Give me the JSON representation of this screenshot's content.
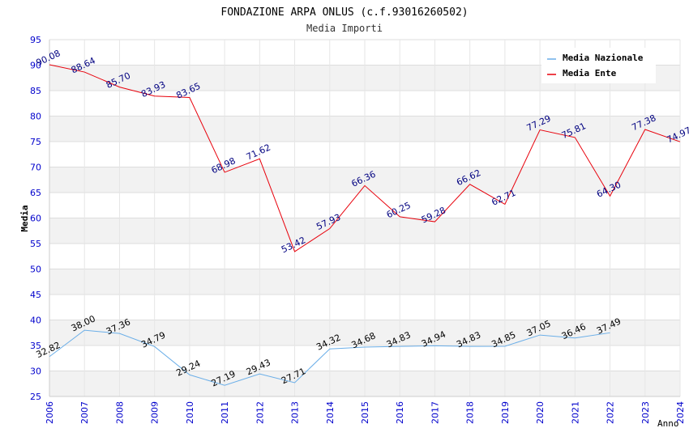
{
  "chart_data": {
    "type": "line",
    "title": "FONDAZIONE ARPA ONLUS (c.f.93016260502)",
    "subtitle": "Media Importi",
    "xlabel": "Anno",
    "ylabel": "Media",
    "ylim": [
      25,
      95
    ],
    "yticks": [
      "25",
      "30",
      "35",
      "40",
      "45",
      "50",
      "55",
      "60",
      "65",
      "70",
      "75",
      "80",
      "85",
      "90",
      "95"
    ],
    "categories": [
      "2006",
      "2007",
      "2008",
      "2009",
      "2010",
      "2011",
      "2012",
      "2013",
      "2014",
      "2015",
      "2016",
      "2017",
      "2018",
      "2019",
      "2020",
      "2021",
      "2022",
      "2023",
      "2024"
    ],
    "grid": "horizontal-bands",
    "legend_position": "top-right",
    "series": [
      {
        "name": "Media Nazionale",
        "color": "#6aaee8",
        "label_color": "#000000",
        "values": [
          32.82,
          38.0,
          37.36,
          34.79,
          29.24,
          27.19,
          29.43,
          27.71,
          34.32,
          34.68,
          34.83,
          34.94,
          34.83,
          34.85,
          37.05,
          36.46,
          37.49,
          null,
          null
        ],
        "labels": [
          "32.82",
          "38.00",
          "37.36",
          "34.79",
          "29.24",
          "27.19",
          "29.43",
          "27.71",
          "34.32",
          "34.68",
          "34.83",
          "34.94",
          "34.83",
          "34.85",
          "37.05",
          "36.46",
          "37.49",
          "",
          ""
        ]
      },
      {
        "name": "Media Ente",
        "color": "#e8000b",
        "label_color": "#000080",
        "values": [
          90.08,
          88.64,
          85.7,
          83.93,
          83.65,
          68.98,
          71.62,
          53.42,
          57.93,
          66.36,
          60.25,
          59.28,
          66.62,
          62.71,
          77.29,
          75.81,
          64.3,
          77.38,
          74.97
        ],
        "labels": [
          "90.08",
          "88.64",
          "85.70",
          "83.93",
          "83.65",
          "68.98",
          "71.62",
          "53.42",
          "57.93",
          "66.36",
          "60.25",
          "59.28",
          "66.62",
          "62.71",
          "77.29",
          "75.81",
          "64.30",
          "77.38",
          "74.97"
        ]
      }
    ]
  }
}
